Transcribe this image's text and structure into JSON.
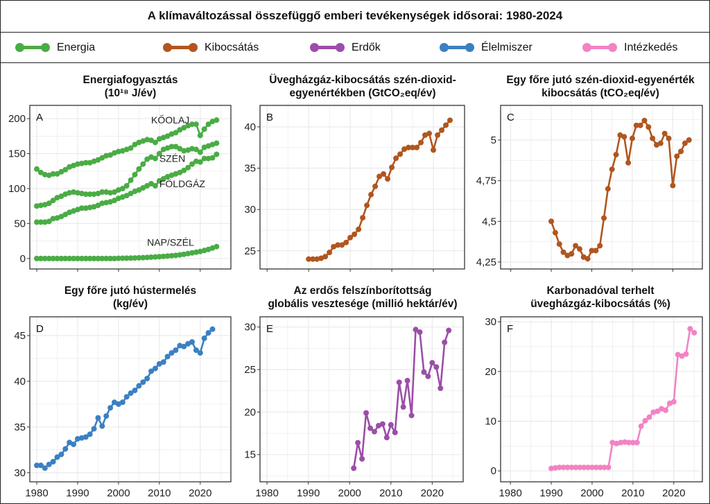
{
  "title": "A klímaváltozással összefüggő emberi tevékenységek idősorai: 1980-2024",
  "legend": [
    {
      "label": "Energia",
      "color": "#4aac45"
    },
    {
      "label": "Kibocsátás",
      "color": "#b0561f"
    },
    {
      "label": "Erdők",
      "color": "#9b4ea8"
    },
    {
      "label": "Élelmiszer",
      "color": "#3b80c2"
    },
    {
      "label": "Intézkedés",
      "color": "#f283c4"
    }
  ],
  "chart_data": [
    {
      "type": "line",
      "panel": "A",
      "title": [
        "Energiafogyasztás",
        "(10¹⁸ J/év)"
      ],
      "color": "#4aac45",
      "xlim": [
        1978.3,
        2027.5
      ],
      "ylim": [
        -15,
        219
      ],
      "xticks": [
        1980,
        1990,
        2000,
        2010,
        2020
      ],
      "xtick_labels": [],
      "yticks": [
        0,
        50,
        100,
        150,
        200
      ],
      "ytick_labels": [
        "0",
        "50",
        "100",
        "150",
        "200"
      ],
      "grid": true,
      "series": [
        {
          "name": "KŐOLAJ",
          "label_at": [
            2008,
            193
          ],
          "x0": 1980,
          "values": [
            128,
            123,
            120,
            119,
            121,
            121,
            124,
            127,
            131,
            133,
            135,
            136,
            137,
            137,
            139,
            141,
            144,
            147,
            148,
            151,
            153,
            154,
            156,
            158,
            163,
            166,
            168,
            170,
            169,
            166,
            171,
            173,
            175,
            178,
            180,
            184,
            187,
            190,
            192,
            192,
            176,
            185,
            192,
            196,
            198
          ]
        },
        {
          "name": "SZÉN",
          "label_at": [
            2010,
            138
          ],
          "x0": 1980,
          "values": [
            75,
            76,
            77,
            79,
            83,
            87,
            89,
            92,
            94,
            95,
            94,
            93,
            92,
            92,
            92,
            93,
            95,
            95,
            94,
            95,
            98,
            100,
            104,
            112,
            120,
            128,
            135,
            142,
            145,
            143,
            150,
            156,
            158,
            160,
            160,
            157,
            154,
            155,
            157,
            156,
            152,
            159,
            161,
            163,
            165
          ]
        },
        {
          "name": "FÖLDGÁZ",
          "label_at": [
            2010,
            102
          ],
          "x0": 1980,
          "values": [
            52,
            52,
            52,
            53,
            57,
            58,
            60,
            63,
            66,
            68,
            70,
            72,
            72,
            73,
            74,
            76,
            79,
            80,
            81,
            83,
            86,
            88,
            90,
            93,
            96,
            98,
            101,
            104,
            107,
            104,
            111,
            114,
            117,
            119,
            121,
            123,
            126,
            130,
            135,
            139,
            138,
            143,
            143,
            144,
            149
          ]
        },
        {
          "name": "NAP/SZÉL",
          "label_at": [
            2007,
            18
          ],
          "x0": 1980,
          "values": [
            0,
            0,
            0,
            0,
            0,
            0,
            0,
            0,
            0,
            0,
            0,
            0,
            0,
            0,
            0,
            0,
            0,
            0,
            0,
            0,
            0.3,
            0.4,
            0.5,
            0.6,
            0.8,
            1,
            1.2,
            1.5,
            1.9,
            2.2,
            2.6,
            3,
            3.5,
            4,
            4.5,
            5.2,
            6,
            7,
            8,
            9,
            10,
            11.5,
            13,
            15,
            17
          ]
        }
      ]
    },
    {
      "type": "line",
      "panel": "B",
      "title": [
        "Üvegházgáz-kibocsátás szén-dioxid-",
        "egyenértékben (GtCO₂eq/év)"
      ],
      "color": "#b0561f",
      "xlim": [
        1978.3,
        2027.5
      ],
      "ylim": [
        22.8,
        42.6
      ],
      "xticks": [
        1980,
        1990,
        2000,
        2010,
        2020
      ],
      "xtick_labels": [],
      "yticks": [
        25,
        30,
        35,
        40
      ],
      "ytick_labels": [
        "25",
        "30",
        "35",
        "40"
      ],
      "grid": true,
      "series": [
        {
          "name": "Kibocsátás",
          "x0": 1990,
          "values": [
            24.0,
            24.0,
            24.0,
            24.1,
            24.3,
            24.8,
            25.5,
            25.7,
            25.7,
            26.0,
            26.6,
            27.0,
            27.6,
            29.0,
            30.5,
            31.8,
            32.8,
            34.0,
            34.3,
            33.7,
            35.1,
            36.2,
            36.7,
            37.3,
            37.5,
            37.5,
            37.5,
            38.1,
            39.0,
            39.2,
            37.2,
            39.0,
            39.6,
            40.2,
            40.8
          ]
        }
      ]
    },
    {
      "type": "line",
      "panel": "C",
      "title": [
        "Egy főre jutó szén-dioxid-egyenérték",
        "kibocsátás (tCO₂eq/év)"
      ],
      "color": "#b0561f",
      "xlim": [
        1977.5,
        2027.3
      ],
      "ylim": [
        4.207,
        5.213
      ],
      "xticks": [
        1980,
        1990,
        2000,
        2010,
        2020
      ],
      "xtick_labels": [],
      "yticks": [
        4.25,
        4.5,
        4.75,
        5
      ],
      "ytick_labels": [
        "4,25",
        "4,5",
        "4,75",
        "5"
      ],
      "grid": true,
      "series": [
        {
          "name": "Kibocsátás",
          "x0": 1990,
          "values": [
            4.5,
            4.43,
            4.36,
            4.31,
            4.29,
            4.3,
            4.35,
            4.33,
            4.28,
            4.27,
            4.32,
            4.32,
            4.35,
            4.52,
            4.7,
            4.82,
            4.91,
            5.03,
            5.02,
            4.86,
            5.01,
            5.09,
            5.09,
            5.12,
            5.08,
            5.01,
            4.97,
            4.98,
            5.04,
            5.01,
            4.72,
            4.9,
            4.93,
            4.98,
            5.0
          ]
        }
      ]
    },
    {
      "type": "line",
      "panel": "D",
      "title": [
        "Egy főre jutó hústermelés",
        "(kg/év)"
      ],
      "color": "#3b80c2",
      "xlim": [
        1978.3,
        2027.5
      ],
      "ylim": [
        29.0,
        47.05
      ],
      "xticks": [
        1980,
        1990,
        2000,
        2010,
        2020
      ],
      "xtick_labels": [
        "1980",
        "1990",
        "2000",
        "2010",
        "2020"
      ],
      "yticks": [
        30,
        35,
        40,
        45
      ],
      "ytick_labels": [
        "30",
        "35",
        "40",
        "45"
      ],
      "grid": true,
      "series": [
        {
          "name": "Élelmiszer",
          "x0": 1980,
          "values": [
            30.8,
            30.8,
            30.5,
            30.9,
            31.2,
            31.7,
            32.0,
            32.6,
            33.3,
            33.1,
            33.7,
            33.8,
            33.9,
            34.2,
            34.8,
            36.0,
            35.1,
            36.2,
            37.1,
            37.7,
            37.5,
            37.7,
            38.3,
            38.7,
            39.0,
            39.5,
            39.9,
            40.3,
            41.1,
            41.4,
            41.9,
            42.1,
            42.7,
            43.1,
            43.4,
            43.9,
            43.8,
            44.1,
            44.3,
            43.4,
            43.1,
            44.7,
            45.3,
            45.7
          ]
        }
      ]
    },
    {
      "type": "line",
      "panel": "E",
      "title": [
        "Az erdős felszínborítottság",
        "globális vesztesége (millió hektár/év)"
      ],
      "color": "#9b4ea8",
      "xlim": [
        1978.3,
        2027.5
      ],
      "ylim": [
        11.8,
        31.2
      ],
      "xticks": [
        1980,
        1990,
        2000,
        2010,
        2020
      ],
      "xtick_labels": [
        "1980",
        "1990",
        "2000",
        "2010",
        "2020"
      ],
      "yticks": [
        15,
        20,
        25,
        30
      ],
      "ytick_labels": [
        "15",
        "20",
        "25",
        "30"
      ],
      "grid": true,
      "series": [
        {
          "name": "Erdők",
          "x0": 2001,
          "values": [
            13.4,
            16.4,
            14.5,
            19.9,
            18.1,
            17.7,
            18.4,
            18.6,
            17.0,
            18.5,
            17.6,
            23.5,
            20.6,
            23.7,
            19.6,
            29.7,
            29.4,
            24.7,
            24.2,
            25.8,
            25.3,
            22.8,
            28.2,
            29.6
          ]
        }
      ]
    },
    {
      "type": "line",
      "panel": "F",
      "title": [
        "Karbonadóval terhelt",
        "üvegházgáz-kibocsátás (%)"
      ],
      "color": "#f283c4",
      "xlim": [
        1977.6,
        2027.0
      ],
      "ylim": [
        -2.2,
        31
      ],
      "xticks": [
        1980,
        1990,
        2000,
        2010,
        2020
      ],
      "xtick_labels": [
        "1980",
        "1990",
        "2000",
        "2010",
        "2020"
      ],
      "yticks": [
        0,
        10,
        20,
        30
      ],
      "ytick_labels": [
        "0",
        "10",
        "20",
        "30"
      ],
      "grid": true,
      "series": [
        {
          "name": "Intézkedés",
          "x0": 1990,
          "values": [
            0.5,
            0.6,
            0.7,
            0.7,
            0.7,
            0.7,
            0.7,
            0.7,
            0.7,
            0.7,
            0.7,
            0.7,
            0.7,
            0.7,
            0.7,
            5.7,
            5.5,
            5.7,
            5.8,
            5.7,
            5.7,
            5.7,
            9.0,
            10.1,
            10.8,
            11.8,
            12.0,
            12.5,
            12.2,
            13.6,
            13.9,
            23.4,
            23.1,
            23.5,
            28.6,
            27.8
          ]
        }
      ]
    }
  ]
}
